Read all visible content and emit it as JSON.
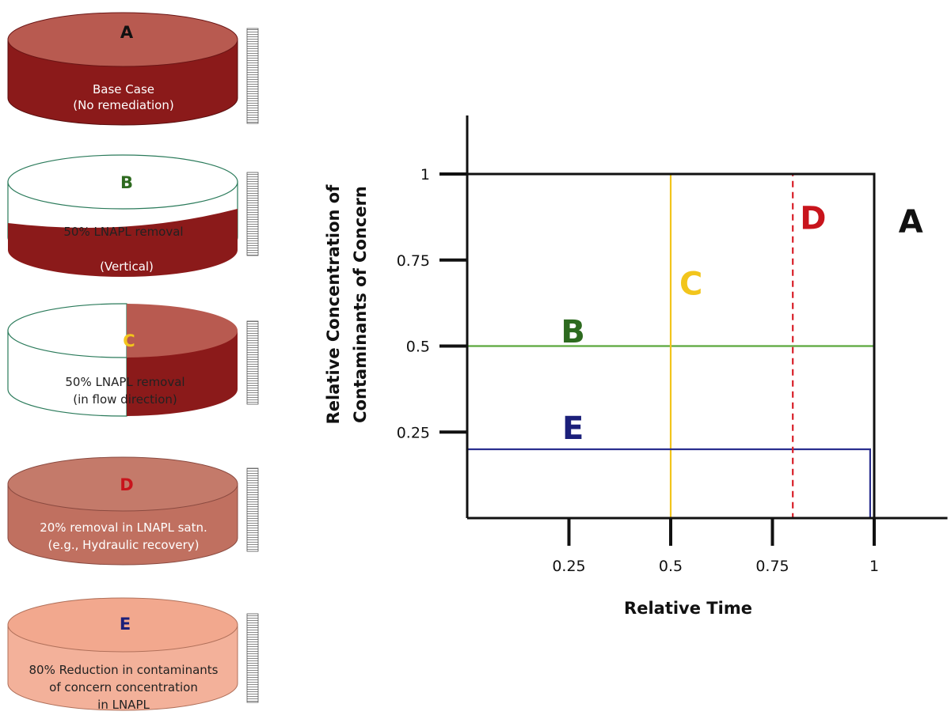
{
  "scenarios": [
    {
      "letter": "A",
      "letter_color": "#111111",
      "lines": [
        "Base Case",
        "(No remediation)"
      ]
    },
    {
      "letter": "B",
      "letter_color": "#2d6a1f",
      "lines": [
        "50% LNAPL removal",
        "(Vertical)"
      ]
    },
    {
      "letter": "C",
      "letter_color": "#f2c51c",
      "lines": [
        "50% LNAPL removal",
        "(in flow direction)"
      ]
    },
    {
      "letter": "D",
      "letter_color": "#c8141c",
      "lines": [
        "20% removal in LNAPL satn.",
        "(e.g., Hydraulic recovery)"
      ]
    },
    {
      "letter": "E",
      "letter_color": "#1b1f7a",
      "lines": [
        "80% Reduction in contaminants",
        "of concern concentration",
        "in LNAPL"
      ]
    }
  ],
  "colors": {
    "dark_red": "#8b1a1a",
    "medium_red": "#c07060",
    "light_salmon": "#f3b19a",
    "outline": "#2a7a5a"
  },
  "chart_data": {
    "type": "line",
    "xlabel": "Relative Time",
    "ylabel_lines": [
      "Relative Concentration of",
      "Contaminants of Concern"
    ],
    "xticks": [
      "0.25",
      "0.5",
      "0.75",
      "1"
    ],
    "yticks": [
      "0.25",
      "0.5",
      "0.75",
      "1"
    ],
    "xlim": [
      0,
      1.18
    ],
    "ylim": [
      0,
      1.17
    ],
    "series": [
      {
        "name": "A",
        "color": "#111111",
        "dashed": false,
        "points": [
          [
            0,
            1
          ],
          [
            1,
            1
          ],
          [
            1,
            0
          ]
        ]
      },
      {
        "name": "B",
        "color": "#5aa83c",
        "dashed": false,
        "points": [
          [
            0,
            0.5
          ],
          [
            1,
            0.5
          ],
          [
            1,
            0
          ]
        ]
      },
      {
        "name": "C",
        "color": "#f2c51c",
        "dashed": false,
        "points": [
          [
            0,
            1
          ],
          [
            0.5,
            1
          ],
          [
            0.5,
            0
          ]
        ]
      },
      {
        "name": "D",
        "color": "#d81e28",
        "dashed": true,
        "points": [
          [
            0,
            1
          ],
          [
            0.8,
            1
          ],
          [
            0.8,
            0
          ]
        ]
      },
      {
        "name": "E",
        "color": "#2a2f8f",
        "dashed": false,
        "points": [
          [
            0,
            0.2
          ],
          [
            0.99,
            0.2
          ],
          [
            0.99,
            0
          ]
        ]
      }
    ],
    "labels": [
      {
        "text": "A",
        "color": "#111111",
        "x": 1.09,
        "y": 0.83
      },
      {
        "text": "B",
        "color": "#2d6a1f",
        "x": 0.26,
        "y": 0.51
      },
      {
        "text": "C",
        "color": "#f2c51c",
        "x": 0.55,
        "y": 0.65
      },
      {
        "text": "D",
        "color": "#c8141c",
        "x": 0.85,
        "y": 0.84
      },
      {
        "text": "E",
        "color": "#1b1f7a",
        "x": 0.26,
        "y": 0.23
      }
    ]
  }
}
